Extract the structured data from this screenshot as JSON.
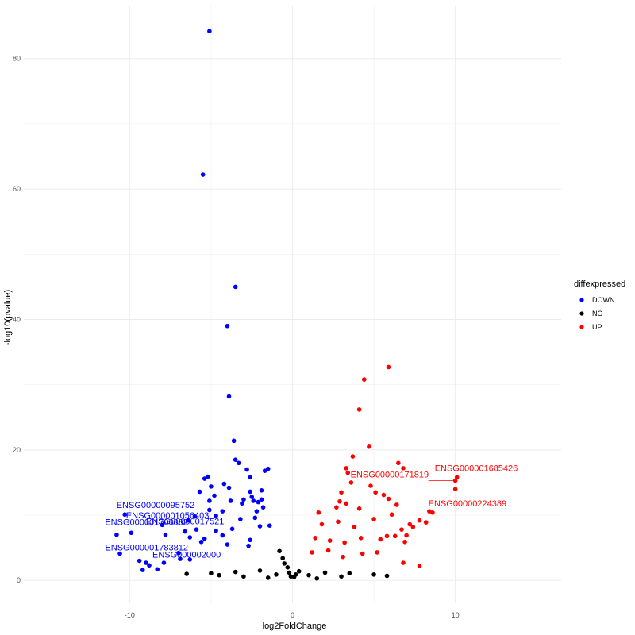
{
  "chart_data": {
    "type": "scatter",
    "xlabel": "log2FoldChange",
    "ylabel": "-log10(pvalue)",
    "xlim": [
      -16.5,
      16.5
    ],
    "ylim": [
      -3.5,
      88
    ],
    "x_ticks": [
      -10,
      0,
      10
    ],
    "y_ticks": [
      0,
      20,
      40,
      60,
      80
    ],
    "grid": true,
    "legend": {
      "title": "diffexpressed",
      "placement": "right",
      "entries": [
        {
          "label": "DOWN",
          "color": "#0000ff"
        },
        {
          "label": "NO",
          "color": "#000000"
        },
        {
          "label": "UP",
          "color": "#ff0000"
        }
      ]
    },
    "series": [
      {
        "name": "DOWN",
        "color": "#0000ff",
        "points": [
          [
            -5.1,
            84.2
          ],
          [
            -5.5,
            62.2
          ],
          [
            -3.5,
            45.0
          ],
          [
            -4.0,
            39.0
          ],
          [
            -3.9,
            28.2
          ],
          [
            -3.6,
            21.4
          ],
          [
            -3.5,
            18.5
          ],
          [
            -3.3,
            18.0
          ],
          [
            -2.8,
            17.0
          ],
          [
            -1.5,
            17.1
          ],
          [
            -1.7,
            16.8
          ],
          [
            -5.4,
            15.6
          ],
          [
            -5.2,
            15.9
          ],
          [
            -2.6,
            15.8
          ],
          [
            -4.2,
            14.8
          ],
          [
            -5.0,
            14.4
          ],
          [
            -3.9,
            14.2
          ],
          [
            -1.9,
            13.8
          ],
          [
            -5.7,
            13.6
          ],
          [
            -2.6,
            13.6
          ],
          [
            -4.8,
            13.0
          ],
          [
            -2.5,
            12.8
          ],
          [
            -3.0,
            12.4
          ],
          [
            -5.1,
            12.2
          ],
          [
            -3.8,
            12.2
          ],
          [
            -2.1,
            12.0
          ],
          [
            -3.1,
            11.8
          ],
          [
            -1.9,
            12.4
          ],
          [
            -2.4,
            12.2
          ],
          [
            -5.1,
            10.8
          ],
          [
            -4.3,
            10.6
          ],
          [
            -4.7,
            9.9
          ],
          [
            -2.2,
            10.6
          ],
          [
            -1.8,
            11.2
          ],
          [
            -6.0,
            9.8
          ],
          [
            -6.4,
            9.2
          ],
          [
            -3.2,
            9.4
          ],
          [
            -2.3,
            9.6
          ],
          [
            -10.3,
            10.1
          ],
          [
            -9.9,
            7.3
          ],
          [
            -10.8,
            7.0
          ],
          [
            -8.0,
            8.5
          ],
          [
            -7.8,
            7.0
          ],
          [
            -10.6,
            4.1
          ],
          [
            -9.4,
            3.0
          ],
          [
            -7.9,
            2.7
          ],
          [
            -8.8,
            2.3
          ],
          [
            -9.0,
            2.7
          ],
          [
            -7.0,
            4.2
          ],
          [
            -8.3,
            1.7
          ],
          [
            -9.2,
            1.6
          ],
          [
            -5.9,
            7.8
          ],
          [
            -6.6,
            7.5
          ],
          [
            -4.7,
            7.6
          ],
          [
            -3.7,
            7.9
          ],
          [
            -2.0,
            8.3
          ],
          [
            -1.4,
            8.4
          ],
          [
            -4.3,
            6.9
          ],
          [
            -6.3,
            6.6
          ],
          [
            -5.4,
            6.4
          ],
          [
            -2.6,
            6.2
          ],
          [
            -5.6,
            5.9
          ],
          [
            -4.0,
            5.5
          ],
          [
            -2.7,
            5.3
          ],
          [
            -6.9,
            3.3
          ],
          [
            -6.3,
            3.2
          ]
        ],
        "labels": [
          {
            "text": "ENSG00000095752",
            "x": -10.3,
            "y": 10.1
          },
          {
            "text": "ENSG000001056403",
            "x": -9.9,
            "y": 8.3
          },
          {
            "text": "ENSG000001700062",
            "x": -10.8,
            "y": 7.0
          },
          {
            "text": "ENSG000001783812",
            "x": -10.6,
            "y": 4.1
          },
          {
            "text": "ENSG00000017521",
            "x": -8.0,
            "y": 5.2
          },
          {
            "text": "ENSG000002000",
            "x": -8.3,
            "y": 2.3
          }
        ]
      },
      {
        "name": "NO",
        "color": "#000000",
        "points": [
          [
            -0.8,
            4.5
          ],
          [
            -0.6,
            3.4
          ],
          [
            -0.5,
            2.6
          ],
          [
            -0.3,
            2.0
          ],
          [
            -0.2,
            1.2
          ],
          [
            -0.1,
            0.6
          ],
          [
            0.1,
            0.5
          ],
          [
            0.2,
            0.9
          ],
          [
            0.4,
            1.4
          ],
          [
            -2.0,
            1.5
          ],
          [
            -3.5,
            1.3
          ],
          [
            -5.0,
            1.1
          ],
          [
            -6.5,
            1.0
          ],
          [
            2.0,
            1.2
          ],
          [
            3.5,
            1.1
          ],
          [
            5.0,
            0.9
          ],
          [
            5.8,
            0.7
          ],
          [
            -4.5,
            0.8
          ],
          [
            -1.0,
            0.9
          ],
          [
            1.0,
            0.8
          ],
          [
            3.0,
            0.6
          ],
          [
            -3.0,
            0.6
          ],
          [
            -1.5,
            0.4
          ],
          [
            1.5,
            0.3
          ]
        ],
        "labels": []
      },
      {
        "name": "UP",
        "color": "#ff0000",
        "points": [
          [
            5.9,
            32.7
          ],
          [
            4.4,
            30.8
          ],
          [
            4.1,
            26.2
          ],
          [
            4.7,
            20.5
          ],
          [
            3.7,
            19.0
          ],
          [
            3.3,
            17.2
          ],
          [
            6.5,
            18.0
          ],
          [
            6.8,
            17.2
          ],
          [
            10.1,
            15.8
          ],
          [
            10.0,
            15.3
          ],
          [
            10.0,
            14.0
          ],
          [
            3.4,
            16.5
          ],
          [
            3.6,
            15.0
          ],
          [
            4.8,
            14.5
          ],
          [
            3.0,
            13.5
          ],
          [
            5.1,
            13.5
          ],
          [
            5.6,
            13.1
          ],
          [
            5.9,
            12.5
          ],
          [
            2.9,
            12.1
          ],
          [
            3.3,
            11.8
          ],
          [
            6.4,
            11.6
          ],
          [
            2.7,
            11.2
          ],
          [
            4.1,
            11.0
          ],
          [
            8.4,
            10.6
          ],
          [
            8.6,
            10.4
          ],
          [
            1.6,
            10.4
          ],
          [
            6.1,
            10.1
          ],
          [
            7.8,
            9.2
          ],
          [
            8.2,
            8.9
          ],
          [
            5.0,
            9.4
          ],
          [
            7.2,
            8.6
          ],
          [
            7.4,
            8.2
          ],
          [
            2.8,
            9.0
          ],
          [
            1.8,
            8.6
          ],
          [
            3.8,
            8.2
          ],
          [
            6.7,
            7.8
          ],
          [
            6.3,
            6.8
          ],
          [
            7.0,
            6.9
          ],
          [
            1.4,
            6.5
          ],
          [
            2.3,
            6.1
          ],
          [
            4.2,
            6.5
          ],
          [
            5.4,
            6.3
          ],
          [
            5.8,
            6.8
          ],
          [
            3.2,
            5.8
          ],
          [
            6.9,
            5.9
          ],
          [
            7.8,
            2.2
          ],
          [
            6.8,
            2.7
          ],
          [
            5.2,
            4.3
          ],
          [
            4.3,
            4.1
          ],
          [
            2.2,
            4.6
          ],
          [
            1.2,
            4.3
          ],
          [
            3.1,
            3.6
          ]
        ],
        "labels": [
          {
            "text": "ENSG000001685426",
            "x": 10.1,
            "y": 15.8
          },
          {
            "text": "ENSG00000171819",
            "x": 10.0,
            "y": 15.3
          },
          {
            "text": "ENSG00000224389",
            "x": 10.0,
            "y": 14.0
          }
        ]
      }
    ]
  }
}
